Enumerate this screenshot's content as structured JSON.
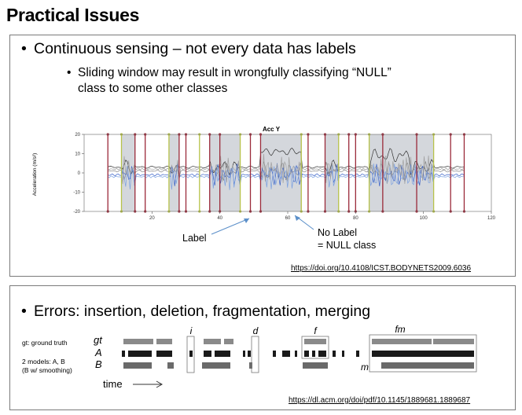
{
  "slide": {
    "title": "Practical Issues"
  },
  "panel1": {
    "bullet": "Continuous sensing – not every data has labels",
    "sub_bullet_line1": "Sliding window may result in wrongfully classifying “NULL”",
    "sub_bullet_line2": "class to some other classes",
    "annotation_label": "Label",
    "annotation_no_label_line1": "No Label",
    "annotation_no_label_line2": "= NULL class",
    "citation": "https://doi.org/10.4108/ICST.BODYNETS2009.6036"
  },
  "chart_data": {
    "type": "line",
    "title": "Acc Y",
    "ylabel": "Acceleration (m/s²)",
    "xlabel": "",
    "ylim": [
      -20,
      20
    ],
    "xlim": [
      0,
      120
    ],
    "yticks": [
      -20,
      -10,
      0,
      10,
      20
    ],
    "xticks": [
      20,
      40,
      60,
      80,
      100,
      120
    ],
    "grid": false,
    "labeled_segments": [
      [
        11,
        15
      ],
      [
        25,
        28
      ],
      [
        37,
        46
      ],
      [
        52,
        64
      ],
      [
        71,
        75
      ],
      [
        84,
        103
      ]
    ],
    "null_segments": [
      [
        7,
        11
      ],
      [
        15,
        25
      ],
      [
        28,
        37
      ],
      [
        46,
        52
      ],
      [
        64,
        71
      ],
      [
        75,
        84
      ],
      [
        103,
        112
      ]
    ],
    "boundary_markers_x": [
      7,
      11,
      15,
      18,
      25,
      28,
      30,
      34,
      37,
      40,
      46,
      49,
      52,
      64,
      66,
      71,
      75,
      78,
      80,
      84,
      88,
      98,
      103,
      108,
      112
    ]
  },
  "panel2": {
    "bullet": "Errors: insertion, deletion, fragmentation, merging",
    "legend_gt": "gt: ground truth",
    "legend_models_line1": "2 models: A, B",
    "legend_models_line2": "(B w/ smoothing)",
    "row_gt": "gt",
    "row_a": "A",
    "row_b": "B",
    "time_label": "time",
    "label_i": "i",
    "label_d": "d",
    "label_f": "f",
    "label_fm": "fm",
    "label_m": "m",
    "citation": "https://dl.acm.org/doi/pdf/10.1145/1889681.1889687"
  }
}
